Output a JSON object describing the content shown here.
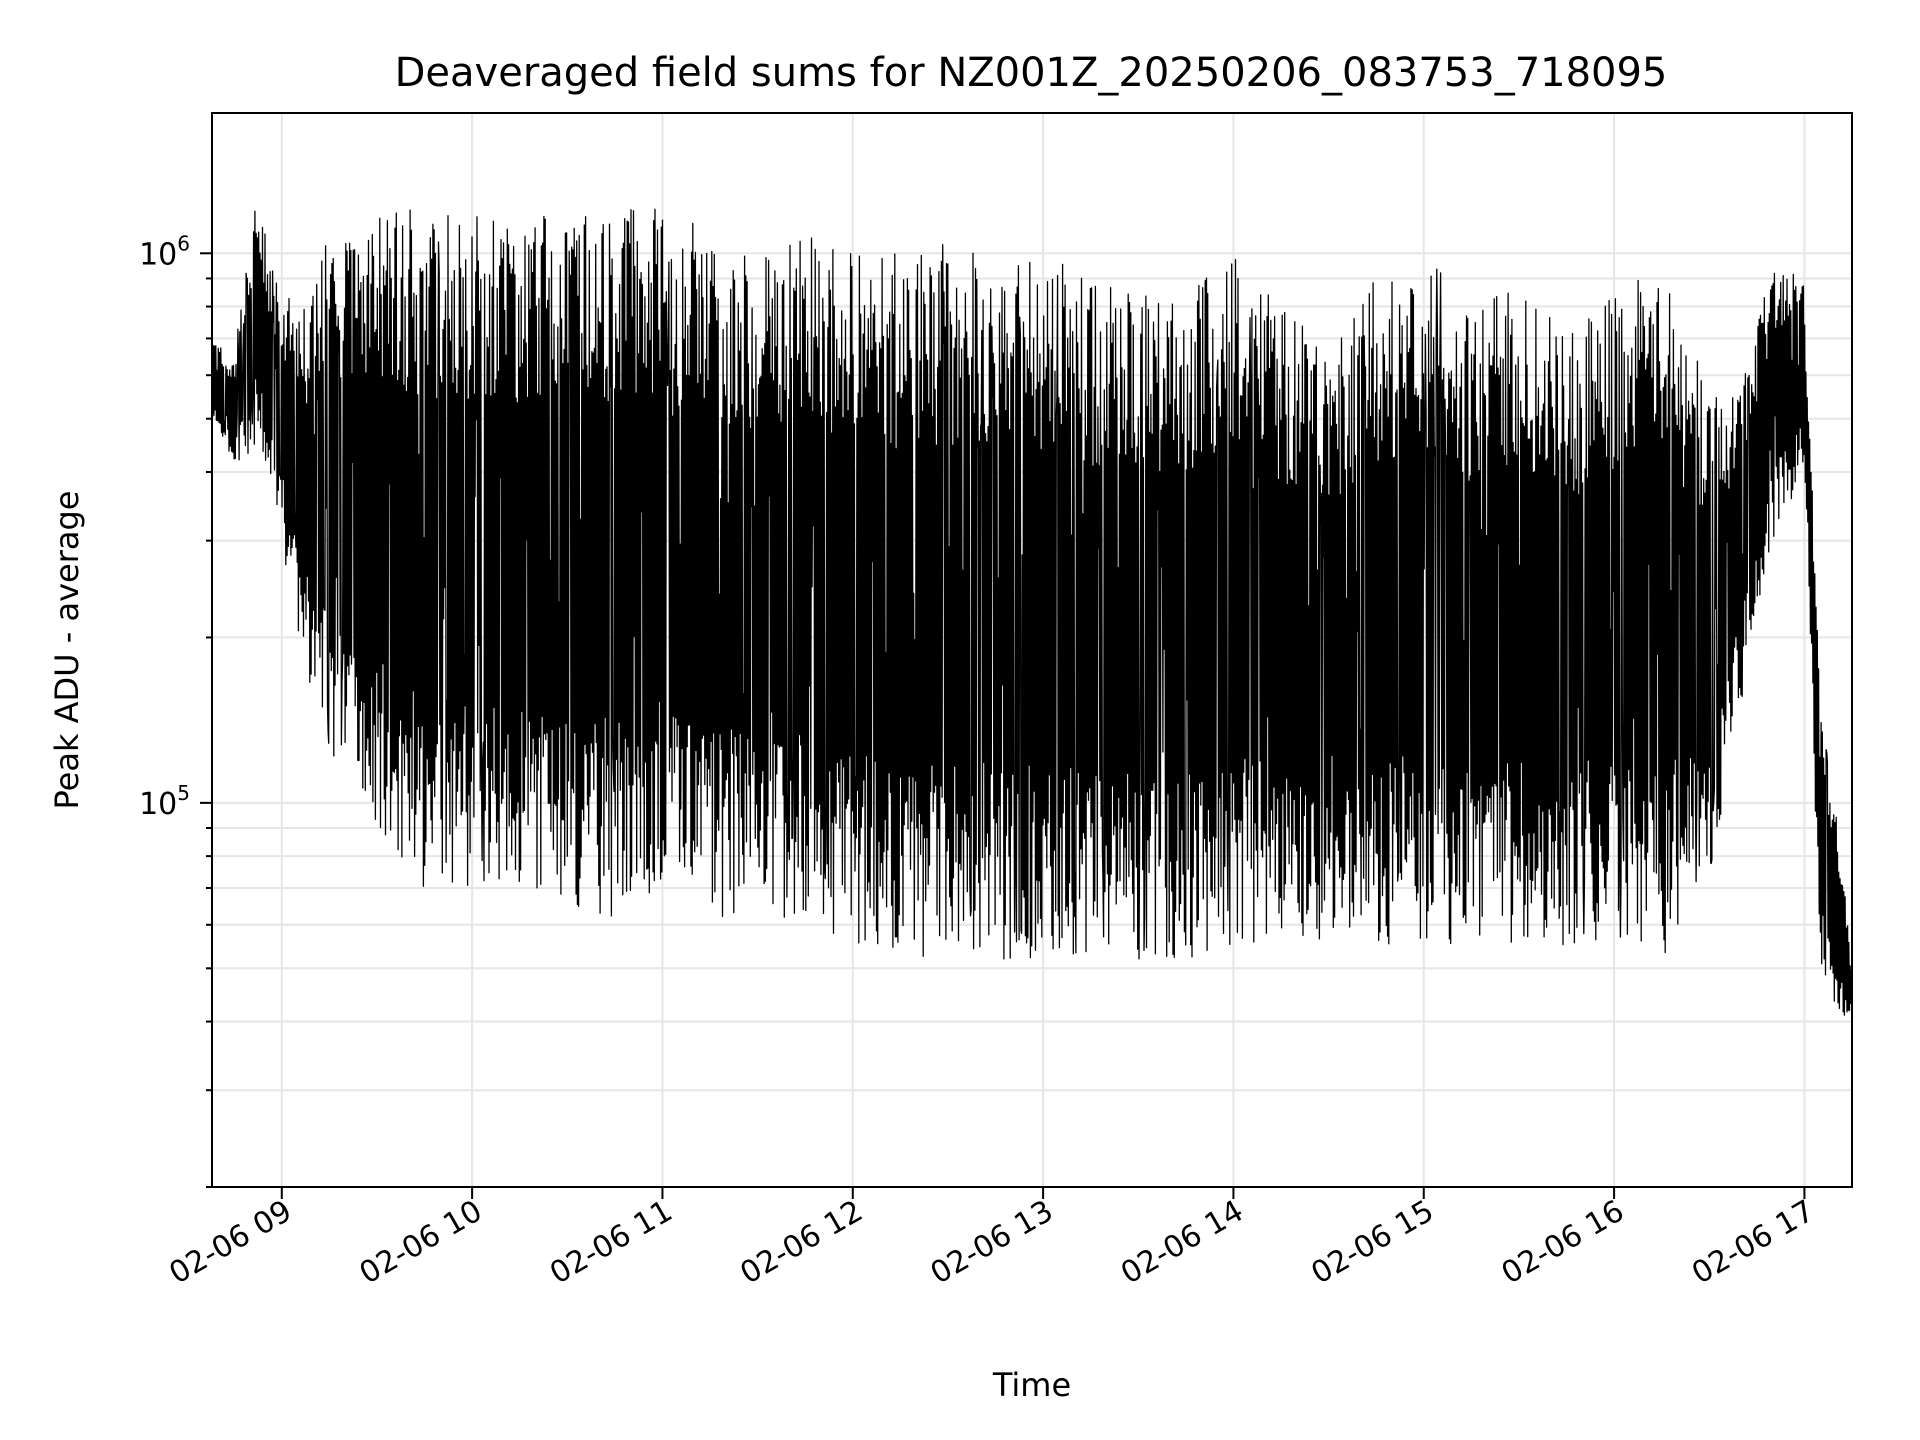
{
  "chart_data": {
    "type": "line",
    "title": "Deaveraged field sums for NZ001Z_20250206_083753_718095",
    "xlabel": "Time",
    "ylabel": "Peak ADU - average",
    "x_axis_kind": "datetime",
    "xlim": [
      "02-06 08:38",
      "02-06 17:15"
    ],
    "ylim": [
      20000,
      1800000
    ],
    "yscale": "log",
    "grid": true,
    "line_color": "#000000",
    "grid_color": "#e6e6e6",
    "x_ticks": [
      {
        "label": "02-06 09",
        "t": "02-06 09:00"
      },
      {
        "label": "02-06 10",
        "t": "02-06 10:00"
      },
      {
        "label": "02-06 11",
        "t": "02-06 11:00"
      },
      {
        "label": "02-06 12",
        "t": "02-06 12:00"
      },
      {
        "label": "02-06 13",
        "t": "02-06 13:00"
      },
      {
        "label": "02-06 14",
        "t": "02-06 14:00"
      },
      {
        "label": "02-06 15",
        "t": "02-06 15:00"
      },
      {
        "label": "02-06 16",
        "t": "02-06 16:00"
      },
      {
        "label": "02-06 17",
        "t": "02-06 17:00"
      }
    ],
    "y_ticks": [
      {
        "value": 100000,
        "base": "10",
        "exp": "5"
      },
      {
        "value": 1000000,
        "base": "10",
        "exp": "6"
      }
    ],
    "series": [
      {
        "style": "dense oscillating trace, sampled envelope",
        "x": [
          "02-06 08:38",
          "02-06 08:45",
          "02-06 08:52",
          "02-06 08:58",
          "02-06 09:05",
          "02-06 09:15",
          "02-06 09:30",
          "02-06 09:45",
          "02-06 10:00",
          "02-06 10:15",
          "02-06 10:30",
          "02-06 10:45",
          "02-06 11:00",
          "02-06 11:15",
          "02-06 11:30",
          "02-06 11:45",
          "02-06 12:00",
          "02-06 12:15",
          "02-06 12:30",
          "02-06 12:45",
          "02-06 13:00",
          "02-06 13:15",
          "02-06 13:30",
          "02-06 13:45",
          "02-06 14:00",
          "02-06 14:15",
          "02-06 14:30",
          "02-06 14:45",
          "02-06 15:00",
          "02-06 15:15",
          "02-06 15:30",
          "02-06 15:45",
          "02-06 16:00",
          "02-06 16:15",
          "02-06 16:30",
          "02-06 16:40",
          "02-06 16:50",
          "02-06 17:00",
          "02-06 17:05",
          "02-06 17:10",
          "02-06 17:15"
        ],
        "y_high": [
          700000,
          650000,
          1300000,
          900000,
          800000,
          1100000,
          1200000,
          1200000,
          1200000,
          1150000,
          1200000,
          1200000,
          1250000,
          1100000,
          1050000,
          1100000,
          1000000,
          1000000,
          1050000,
          1000000,
          1000000,
          900000,
          900000,
          850000,
          1000000,
          800000,
          700000,
          900000,
          1000000,
          800000,
          900000,
          700000,
          850000,
          1000000,
          550000,
          600000,
          950000,
          900000,
          150000,
          100000,
          50000
        ],
        "y_low": [
          500000,
          400000,
          450000,
          350000,
          200000,
          120000,
          90000,
          70000,
          70000,
          70000,
          65000,
          62000,
          65000,
          62000,
          62000,
          60000,
          55000,
          52000,
          50000,
          52000,
          52000,
          52000,
          52000,
          52000,
          55000,
          55000,
          55000,
          55000,
          55000,
          55000,
          55000,
          55000,
          55000,
          52000,
          70000,
          150000,
          300000,
          400000,
          50000,
          40000,
          40000
        ]
      }
    ]
  }
}
